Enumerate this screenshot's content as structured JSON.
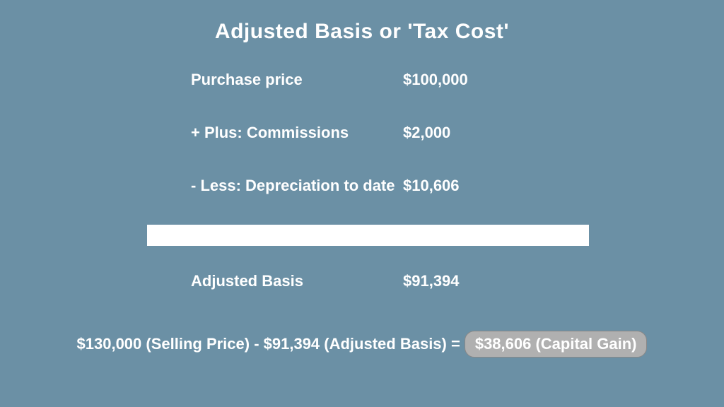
{
  "colors": {
    "background": "#6b90a5",
    "text": "#ffffff",
    "divider_bg": "#ffffff",
    "badge_bg": "#b0b0b0",
    "badge_border": "#888888",
    "badge_text": "#ffffff"
  },
  "title": "Adjusted Basis or 'Tax Cost'",
  "rows": [
    {
      "label": "Purchase price",
      "value": "$100,000"
    },
    {
      "label": "+ Plus: Commissions",
      "value": "$2,000"
    },
    {
      "label": "- Less: Depreciation to date",
      "value": "$10,606"
    },
    {
      "label": "Adjusted Basis",
      "value": "$91,394"
    }
  ],
  "equation": {
    "text": "$130,000 (Selling Price) - $91,394 (Adjusted Basis) =",
    "badge": "$38,606 (Capital Gain)"
  }
}
